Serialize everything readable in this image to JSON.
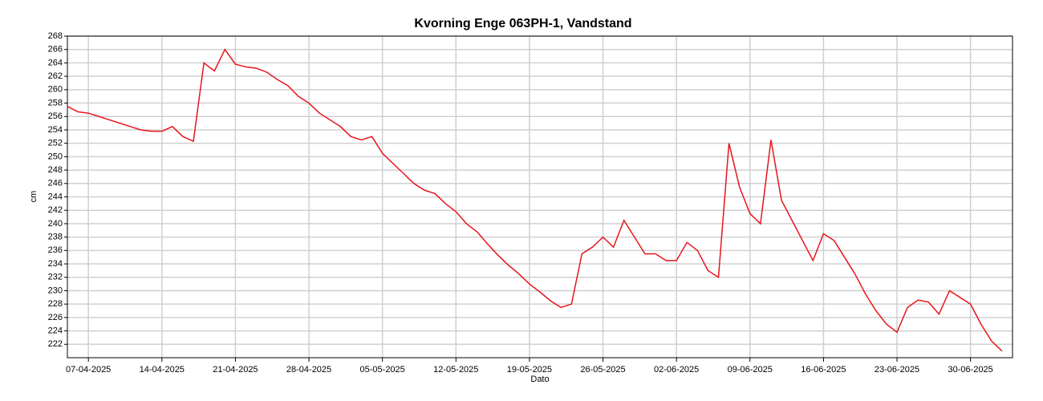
{
  "chart_data": {
    "type": "line",
    "title": "Kvorning Enge 063PH-1, Vandstand",
    "x_label": "Dato",
    "y_label": "cm",
    "x": [
      "2025-04-05",
      "2025-04-06",
      "2025-04-07",
      "2025-04-08",
      "2025-04-09",
      "2025-04-10",
      "2025-04-11",
      "2025-04-12",
      "2025-04-13",
      "2025-04-14",
      "2025-04-15",
      "2025-04-16",
      "2025-04-17",
      "2025-04-18",
      "2025-04-19",
      "2025-04-20",
      "2025-04-21",
      "2025-04-22",
      "2025-04-23",
      "2025-04-24",
      "2025-04-25",
      "2025-04-26",
      "2025-04-27",
      "2025-04-28",
      "2025-04-29",
      "2025-04-30",
      "2025-05-01",
      "2025-05-02",
      "2025-05-03",
      "2025-05-04",
      "2025-05-05",
      "2025-05-06",
      "2025-05-07",
      "2025-05-08",
      "2025-05-09",
      "2025-05-10",
      "2025-05-11",
      "2025-05-12",
      "2025-05-13",
      "2025-05-14",
      "2025-05-15",
      "2025-05-16",
      "2025-05-17",
      "2025-05-18",
      "2025-05-19",
      "2025-05-20",
      "2025-05-21",
      "2025-05-22",
      "2025-05-23",
      "2025-05-24",
      "2025-05-25",
      "2025-05-26",
      "2025-05-27",
      "2025-05-28",
      "2025-05-29",
      "2025-05-30",
      "2025-05-31",
      "2025-06-01",
      "2025-06-02",
      "2025-06-03",
      "2025-06-04",
      "2025-06-05",
      "2025-06-06",
      "2025-06-07",
      "2025-06-08",
      "2025-06-09",
      "2025-06-10",
      "2025-06-11",
      "2025-06-12",
      "2025-06-13",
      "2025-06-14",
      "2025-06-15",
      "2025-06-16",
      "2025-06-17",
      "2025-06-18",
      "2025-06-19",
      "2025-06-20",
      "2025-06-21",
      "2025-06-22",
      "2025-06-23",
      "2025-06-24",
      "2025-06-25",
      "2025-06-26",
      "2025-06-27",
      "2025-06-28",
      "2025-06-29",
      "2025-06-30",
      "2025-07-01",
      "2025-07-02",
      "2025-07-03"
    ],
    "series": [
      {
        "name": "Vandstand",
        "color": "#e8141c",
        "values": [
          257.5,
          256.7,
          256.5,
          256.0,
          255.5,
          255.0,
          254.5,
          254.0,
          253.8,
          253.8,
          254.5,
          253.0,
          252.3,
          264.0,
          262.8,
          266.0,
          263.8,
          263.4,
          263.2,
          262.6,
          261.5,
          260.6,
          259.0,
          258.0,
          256.5,
          255.5,
          254.5,
          253.0,
          252.5,
          253.0,
          250.5,
          249.0,
          247.5,
          246.0,
          245.0,
          244.5,
          243.0,
          241.8,
          240.0,
          238.8,
          237.0,
          235.3,
          233.8,
          232.5,
          231.0,
          229.8,
          228.5,
          227.5,
          228.0,
          235.5,
          236.5,
          238.0,
          236.5,
          240.5,
          238.0,
          235.5,
          235.5,
          234.5,
          234.5,
          237.2,
          236.0,
          233.0,
          232.0,
          252.0,
          245.5,
          241.5,
          240.0,
          252.5,
          243.5,
          240.5,
          237.5,
          234.5,
          238.5,
          237.5,
          235.0,
          232.5,
          229.5,
          227.0,
          225.0,
          223.8,
          227.5,
          228.6,
          228.3,
          226.5,
          230.0,
          229.0,
          228.0,
          225.0,
          222.5,
          221.0
        ]
      }
    ],
    "xlim": [
      "2025-04-05",
      "2025-07-04"
    ],
    "xticks": [
      {
        "value": "2025-04-07",
        "label": "07-04-2025"
      },
      {
        "value": "2025-04-14",
        "label": "14-04-2025"
      },
      {
        "value": "2025-04-21",
        "label": "21-04-2025"
      },
      {
        "value": "2025-04-28",
        "label": "28-04-2025"
      },
      {
        "value": "2025-05-05",
        "label": "05-05-2025"
      },
      {
        "value": "2025-05-12",
        "label": "12-05-2025"
      },
      {
        "value": "2025-05-19",
        "label": "19-05-2025"
      },
      {
        "value": "2025-05-26",
        "label": "26-05-2025"
      },
      {
        "value": "2025-06-02",
        "label": "02-06-2025"
      },
      {
        "value": "2025-06-09",
        "label": "09-06-2025"
      },
      {
        "value": "2025-06-16",
        "label": "16-06-2025"
      },
      {
        "value": "2025-06-23",
        "label": "23-06-2025"
      },
      {
        "value": "2025-06-30",
        "label": "30-06-2025"
      }
    ],
    "ylim": [
      220,
      268
    ],
    "yticks": [
      222,
      224,
      226,
      228,
      230,
      232,
      234,
      236,
      238,
      240,
      242,
      244,
      246,
      248,
      250,
      252,
      254,
      256,
      258,
      260,
      262,
      264,
      266,
      268
    ],
    "grid": true
  }
}
